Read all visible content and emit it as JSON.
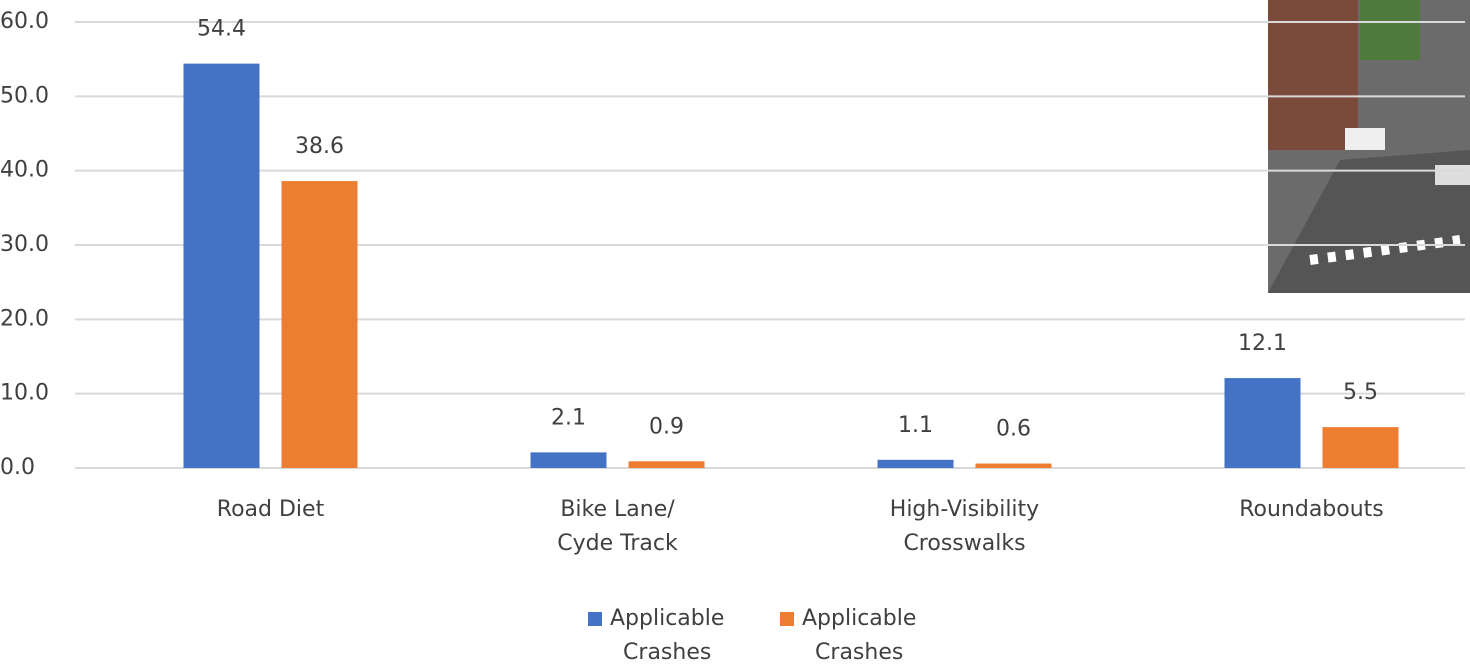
{
  "chart_data": {
    "type": "bar",
    "categories": [
      "Road Diet",
      "Bike Lane/\nCyde Track",
      "High-Visibility\nCrosswalks",
      "Roundabouts"
    ],
    "series": [
      {
        "name": "Applicable\nCrashes",
        "color": "#4472c4",
        "values": [
          54.4,
          2.1,
          1.1,
          12.1
        ]
      },
      {
        "name": "Applicable\nCrashes",
        "color": "#ed7d31",
        "values": [
          38.6,
          0.9,
          0.6,
          5.5
        ]
      }
    ],
    "ylim": [
      0,
      60
    ],
    "yticks": [
      {
        "value": 0,
        "label": "0.0"
      },
      {
        "value": 10,
        "label": "10.0"
      },
      {
        "value": 20,
        "label": "20.0"
      },
      {
        "value": 30,
        "label": "30.0"
      },
      {
        "value": 40,
        "label": "40.0"
      },
      {
        "value": 50,
        "label": "50.0"
      },
      {
        "value": 60,
        "label": "60.0"
      }
    ],
    "grid": true,
    "legend": "bottom"
  }
}
